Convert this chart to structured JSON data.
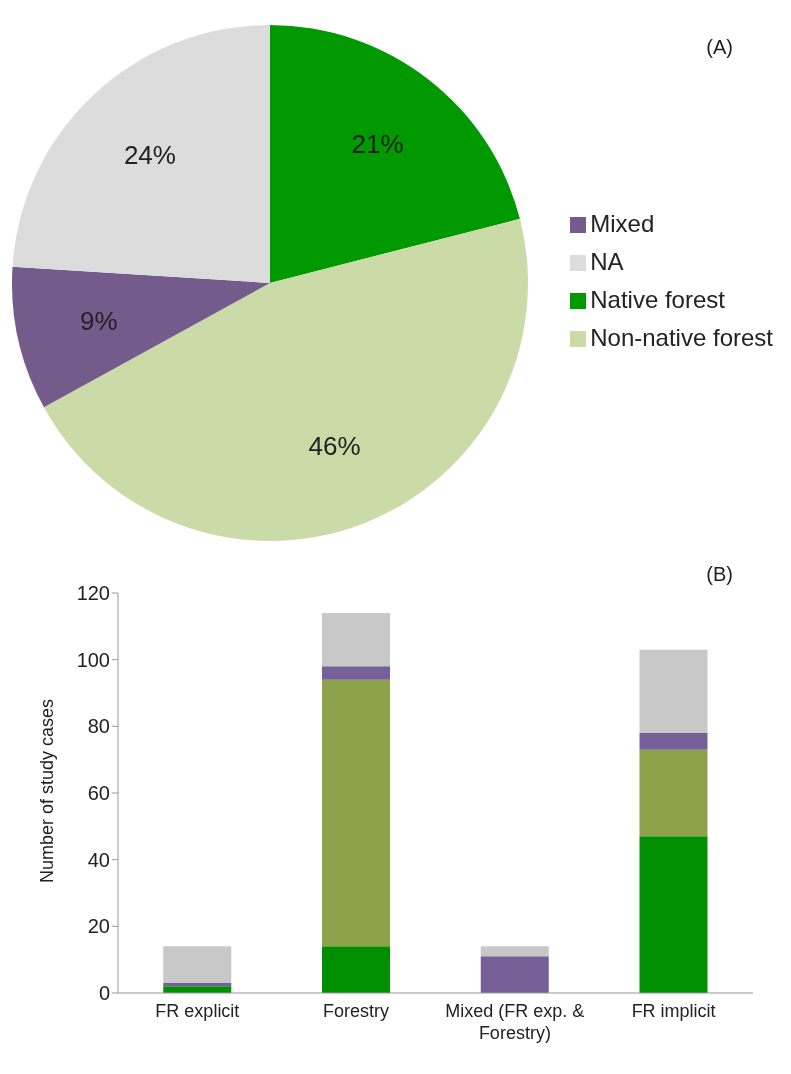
{
  "chart_data": [
    {
      "type": "pie",
      "categories": [
        "Native forest",
        "Non-native forest",
        "Mixed",
        "NA"
      ],
      "values": [
        21,
        46,
        9,
        24
      ],
      "value_labels": [
        "21%",
        "46%",
        "9%",
        "24%"
      ],
      "colors": [
        "#009900",
        "#cadba8",
        "#735b8c",
        "#dcdcdc"
      ],
      "legend": "right",
      "annotations": [
        "(A)"
      ]
    },
    {
      "type": "bar",
      "stacked": true,
      "categories": [
        "FR explicit",
        "Forestry",
        "Mixed (FR exp. & Forestry)",
        "FR implicit"
      ],
      "series": [
        {
          "color": "#008f00",
          "values": [
            2,
            14,
            0,
            47
          ]
        },
        {
          "color": "#8ca34c",
          "values": [
            0,
            80,
            0,
            26
          ]
        },
        {
          "color": "#77609a",
          "values": [
            1,
            4,
            11,
            5
          ]
        },
        {
          "color": "#c8c8c8",
          "values": [
            11,
            16,
            3,
            25
          ]
        }
      ],
      "ylabel": "Number of study cases",
      "ylim": [
        0,
        120
      ],
      "yticks": [
        0,
        20,
        40,
        60,
        80,
        100,
        120
      ],
      "grid": false,
      "annotations": [
        "(B)"
      ]
    }
  ]
}
